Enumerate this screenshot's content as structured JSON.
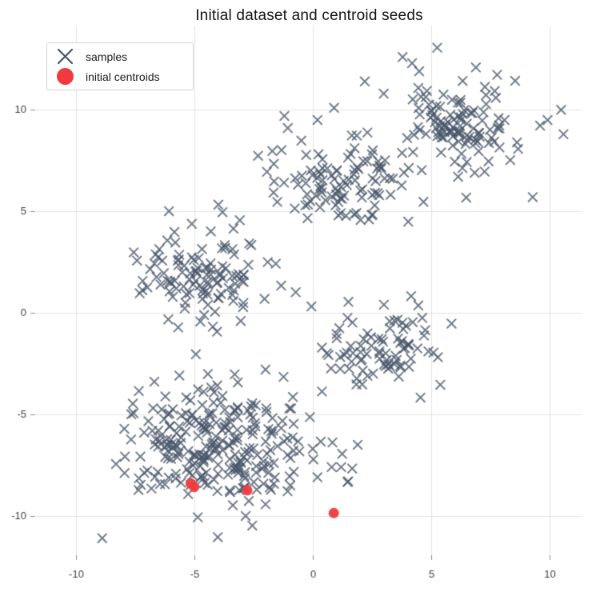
{
  "chart_data": {
    "type": "scatter",
    "title": "Initial dataset and centroid seeds",
    "xlabel": "",
    "ylabel": "",
    "axes": {
      "x_ticks": [
        -10,
        -5,
        0,
        5,
        10
      ],
      "y_ticks": [
        10,
        5,
        0,
        -5,
        -10
      ],
      "xlim": [
        -11.7,
        11.4
      ],
      "ylim": [
        -11.9,
        14.15
      ],
      "grid": true,
      "legend_position": "upper-left"
    },
    "style": {
      "grid_color": "#e0e0e0",
      "tick_color": "#8c8c8c",
      "tick_label_color": "#3c3c3c",
      "background": "#ffffff"
    },
    "series": [
      {
        "name": "samples",
        "marker": "x",
        "color": "#475569",
        "opacity": 0.8,
        "seed": 7,
        "clusters": [
          {
            "center": [
              6.3,
              9.3
            ],
            "std": [
              1.2,
              1.15
            ],
            "n": 115
          },
          {
            "center": [
              1.2,
              6.4
            ],
            "std": [
              1.35,
              1.15
            ],
            "n": 105
          },
          {
            "center": [
              -4.6,
              1.9
            ],
            "std": [
              1.35,
              1.25
            ],
            "n": 115
          },
          {
            "center": [
              2.9,
              -1.7
            ],
            "std": [
              1.15,
              1.1
            ],
            "n": 85
          },
          {
            "center": [
              -4.2,
              -6.3
            ],
            "std": [
              1.9,
              1.5
            ],
            "n": 265
          }
        ],
        "outliers": [
          [
            10.5,
            10.0
          ],
          [
            10.6,
            8.8
          ],
          [
            9.3,
            5.7
          ],
          [
            -8.9,
            -11.1
          ],
          [
            -1.2,
            9.7
          ],
          [
            0.2,
            9.5
          ],
          [
            3.8,
            12.6
          ],
          [
            4.2,
            12.3
          ],
          [
            4.5,
            11.9
          ],
          [
            2.2,
            11.4
          ],
          [
            3.0,
            10.8
          ],
          [
            1.9,
            -6.5
          ],
          [
            0.8,
            -7.6
          ],
          [
            1.2,
            -7.6
          ],
          [
            0.2,
            -8.1
          ],
          [
            0.0,
            -6.7
          ],
          [
            1.5,
            -8.3
          ]
        ]
      },
      {
        "name": "initial centroids",
        "marker": "circle",
        "color": "#ef3b3e",
        "opacity": 0.95,
        "points": [
          [
            -5.16,
            -8.41
          ],
          [
            -5.01,
            -8.58
          ],
          [
            -2.77,
            -8.74
          ],
          [
            0.89,
            -9.86
          ]
        ]
      }
    ]
  }
}
